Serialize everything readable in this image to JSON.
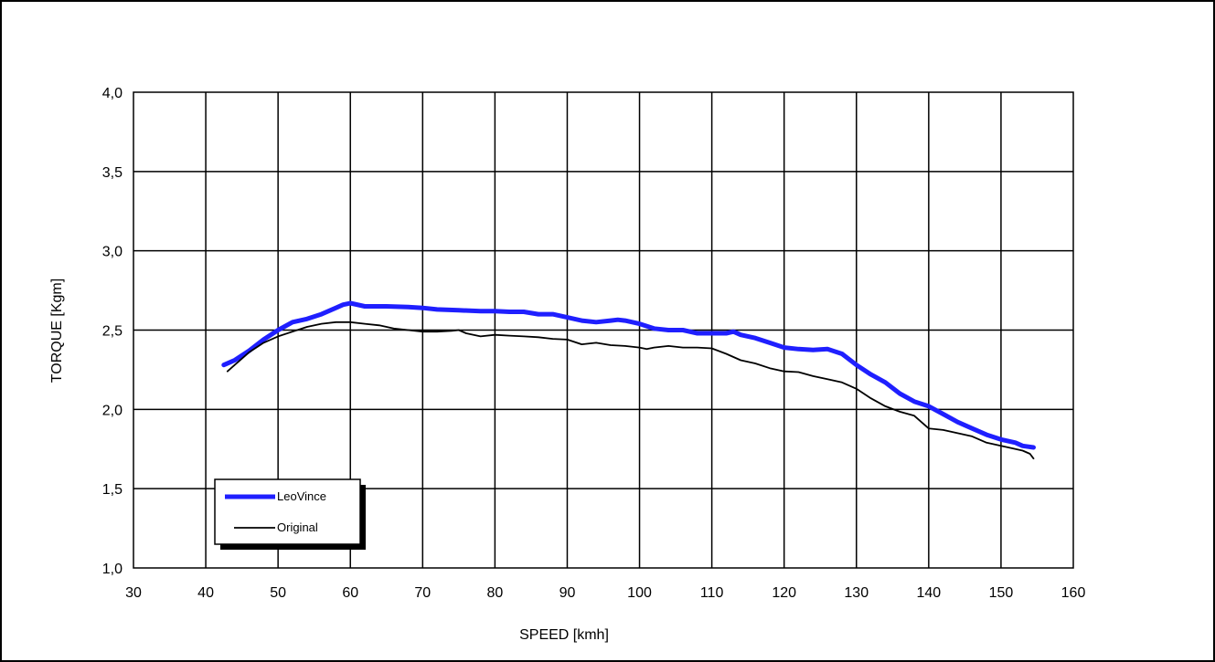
{
  "chart_data": {
    "type": "line",
    "title": "",
    "xlabel": "SPEED  [kmh]",
    "ylabel": "TORQUE [Kgm]",
    "xlim": [
      30,
      160
    ],
    "ylim": [
      1.0,
      4.0
    ],
    "x_ticks": [
      30,
      40,
      50,
      60,
      70,
      80,
      90,
      100,
      110,
      120,
      130,
      140,
      150,
      160
    ],
    "y_ticks": [
      1.0,
      1.5,
      2.0,
      2.5,
      3.0,
      3.5,
      4.0
    ],
    "x_tick_labels": [
      "30",
      "40",
      "50",
      "60",
      "70",
      "80",
      "90",
      "100",
      "110",
      "120",
      "130",
      "140",
      "150",
      "160"
    ],
    "y_tick_labels": [
      "1,0",
      "1,5",
      "2,0",
      "2,5",
      "3,0",
      "3,5",
      "4,0"
    ],
    "grid": true,
    "legend_position": "bottom-left",
    "series": [
      {
        "name": "LeoVince",
        "color": "#1f1fff",
        "points": [
          [
            42.5,
            2.28
          ],
          [
            44,
            2.31
          ],
          [
            46,
            2.37
          ],
          [
            48,
            2.44
          ],
          [
            50,
            2.5
          ],
          [
            52,
            2.55
          ],
          [
            54,
            2.57
          ],
          [
            56,
            2.6
          ],
          [
            58,
            2.64
          ],
          [
            59,
            2.66
          ],
          [
            60,
            2.67
          ],
          [
            62,
            2.65
          ],
          [
            65,
            2.65
          ],
          [
            68,
            2.645
          ],
          [
            70,
            2.64
          ],
          [
            72,
            2.63
          ],
          [
            75,
            2.625
          ],
          [
            78,
            2.62
          ],
          [
            80,
            2.62
          ],
          [
            82,
            2.615
          ],
          [
            84,
            2.615
          ],
          [
            86,
            2.6
          ],
          [
            88,
            2.6
          ],
          [
            90,
            2.58
          ],
          [
            92,
            2.56
          ],
          [
            94,
            2.55
          ],
          [
            96,
            2.56
          ],
          [
            97,
            2.565
          ],
          [
            98,
            2.56
          ],
          [
            100,
            2.54
          ],
          [
            102,
            2.51
          ],
          [
            104,
            2.5
          ],
          [
            106,
            2.5
          ],
          [
            108,
            2.48
          ],
          [
            110,
            2.48
          ],
          [
            112,
            2.48
          ],
          [
            113,
            2.49
          ],
          [
            114,
            2.47
          ],
          [
            116,
            2.45
          ],
          [
            118,
            2.42
          ],
          [
            120,
            2.39
          ],
          [
            122,
            2.38
          ],
          [
            124,
            2.375
          ],
          [
            126,
            2.38
          ],
          [
            128,
            2.35
          ],
          [
            130,
            2.28
          ],
          [
            132,
            2.22
          ],
          [
            134,
            2.17
          ],
          [
            136,
            2.1
          ],
          [
            138,
            2.05
          ],
          [
            140,
            2.02
          ],
          [
            142,
            1.97
          ],
          [
            144,
            1.92
          ],
          [
            146,
            1.88
          ],
          [
            148,
            1.84
          ],
          [
            150,
            1.81
          ],
          [
            152,
            1.79
          ],
          [
            153,
            1.77
          ],
          [
            154.5,
            1.76
          ]
        ]
      },
      {
        "name": "Original",
        "color": "#000000",
        "points": [
          [
            43,
            2.24
          ],
          [
            44,
            2.28
          ],
          [
            46,
            2.36
          ],
          [
            48,
            2.42
          ],
          [
            50,
            2.46
          ],
          [
            52,
            2.49
          ],
          [
            54,
            2.52
          ],
          [
            56,
            2.54
          ],
          [
            58,
            2.55
          ],
          [
            60,
            2.55
          ],
          [
            62,
            2.54
          ],
          [
            64,
            2.53
          ],
          [
            66,
            2.51
          ],
          [
            68,
            2.5
          ],
          [
            70,
            2.49
          ],
          [
            72,
            2.49
          ],
          [
            74,
            2.495
          ],
          [
            75,
            2.5
          ],
          [
            76,
            2.48
          ],
          [
            78,
            2.46
          ],
          [
            80,
            2.47
          ],
          [
            82,
            2.465
          ],
          [
            84,
            2.46
          ],
          [
            86,
            2.455
          ],
          [
            88,
            2.445
          ],
          [
            90,
            2.44
          ],
          [
            92,
            2.41
          ],
          [
            94,
            2.42
          ],
          [
            96,
            2.405
          ],
          [
            98,
            2.4
          ],
          [
            100,
            2.39
          ],
          [
            101,
            2.38
          ],
          [
            102,
            2.39
          ],
          [
            104,
            2.4
          ],
          [
            106,
            2.39
          ],
          [
            108,
            2.39
          ],
          [
            110,
            2.385
          ],
          [
            112,
            2.35
          ],
          [
            114,
            2.31
          ],
          [
            116,
            2.29
          ],
          [
            118,
            2.26
          ],
          [
            120,
            2.24
          ],
          [
            122,
            2.235
          ],
          [
            124,
            2.21
          ],
          [
            126,
            2.19
          ],
          [
            128,
            2.17
          ],
          [
            130,
            2.13
          ],
          [
            132,
            2.07
          ],
          [
            134,
            2.02
          ],
          [
            136,
            1.985
          ],
          [
            138,
            1.96
          ],
          [
            140,
            1.88
          ],
          [
            142,
            1.87
          ],
          [
            144,
            1.85
          ],
          [
            146,
            1.83
          ],
          [
            148,
            1.79
          ],
          [
            150,
            1.77
          ],
          [
            152,
            1.75
          ],
          [
            153,
            1.74
          ],
          [
            154,
            1.72
          ],
          [
            154.5,
            1.69
          ]
        ]
      }
    ]
  }
}
